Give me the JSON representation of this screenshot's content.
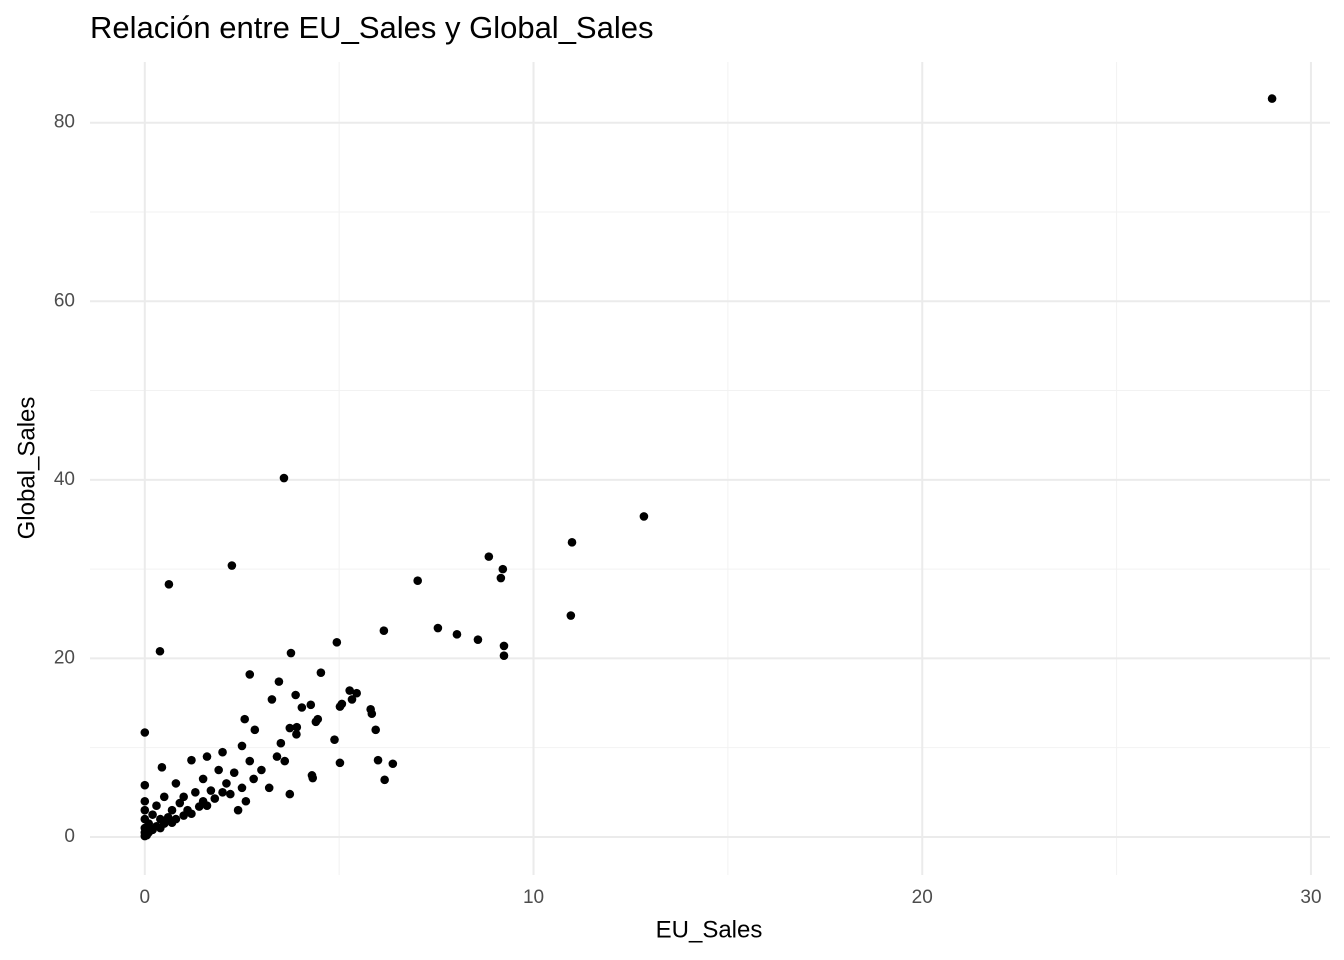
{
  "chart_data": {
    "type": "scatter",
    "title": "Relación entre EU_Sales y Global_Sales",
    "x_label": "EU_Sales",
    "y_label": "Global_Sales",
    "color": "#000000",
    "xlim": [
      -1.41,
      30.49
    ],
    "ylim": [
      -4.26,
      86.8
    ],
    "xticks": [
      0,
      10,
      20,
      30
    ],
    "yticks": [
      0,
      20,
      40,
      60,
      80
    ],
    "x_minor_ticks": [
      5,
      15,
      25
    ],
    "y_minor_ticks": [
      10,
      30,
      50,
      70
    ],
    "grid": true,
    "x": [
      29.0,
      3.58,
      12.84,
      10.99,
      8.85,
      9.21,
      9.16,
      2.24,
      0.62,
      7.02,
      7.54,
      8.03,
      8.57,
      6.15,
      10.96,
      9.24,
      9.24,
      4.94,
      3.76,
      0.39,
      2.7,
      4.53,
      3.45,
      3.88,
      3.27,
      5.27,
      5.45,
      5.33,
      5.07,
      5.02,
      5.81,
      5.84,
      4.04,
      4.27,
      4.45,
      4.4,
      2.57,
      2.83,
      3.73,
      3.91,
      4.88,
      5.94,
      6.0,
      6.38,
      5.02,
      6.17,
      4.3,
      4.32,
      3.73,
      0,
      0.44,
      0,
      0,
      0,
      0,
      0,
      0,
      0,
      0.05,
      0.1,
      0.1,
      0.2,
      0.2,
      0.3,
      0.3,
      0.4,
      0.4,
      0.5,
      0.5,
      0.6,
      0.7,
      0.7,
      0.8,
      0.9,
      1.0,
      1.0,
      1.1,
      1.2,
      1.3,
      1.4,
      1.5,
      1.5,
      1.6,
      1.7,
      1.8,
      1.9,
      2.0,
      2.0,
      2.1,
      2.2,
      2.3,
      2.5,
      2.6,
      2.7,
      2.8,
      3.0,
      3.2,
      3.4,
      3.5,
      3.6,
      3.9,
      2.5,
      2.4,
      1.2,
      0.8,
      1.6
    ],
    "values": [
      82.7,
      40.2,
      35.9,
      33.0,
      31.4,
      30.0,
      29.0,
      30.4,
      28.3,
      28.7,
      23.4,
      22.7,
      22.1,
      23.1,
      24.8,
      21.4,
      20.3,
      21.8,
      20.6,
      20.8,
      18.2,
      18.4,
      17.4,
      15.9,
      15.4,
      16.4,
      16.1,
      15.4,
      14.9,
      14.6,
      14.3,
      13.8,
      14.5,
      14.8,
      13.2,
      12.9,
      13.2,
      12.0,
      12.2,
      12.3,
      10.9,
      12.0,
      8.6,
      8.2,
      8.3,
      6.4,
      6.9,
      6.6,
      4.8,
      11.7,
      7.8,
      5.8,
      0.1,
      0.5,
      1,
      2,
      3,
      4,
      0.2,
      0.5,
      1.5,
      0.8,
      2.5,
      1.2,
      3.5,
      1.0,
      2.0,
      1.5,
      4.5,
      2.2,
      1.6,
      3.0,
      2.0,
      3.8,
      2.4,
      4.5,
      3.0,
      2.6,
      5.0,
      3.4,
      4.0,
      6.5,
      3.5,
      5.2,
      4.3,
      7.5,
      5.0,
      9.5,
      6.0,
      4.8,
      7.2,
      5.5,
      4.0,
      8.5,
      6.5,
      7.5,
      5.5,
      9.0,
      10.5,
      8.5,
      11.5,
      10.2,
      3.0,
      8.6,
      6.0,
      9.0
    ]
  }
}
